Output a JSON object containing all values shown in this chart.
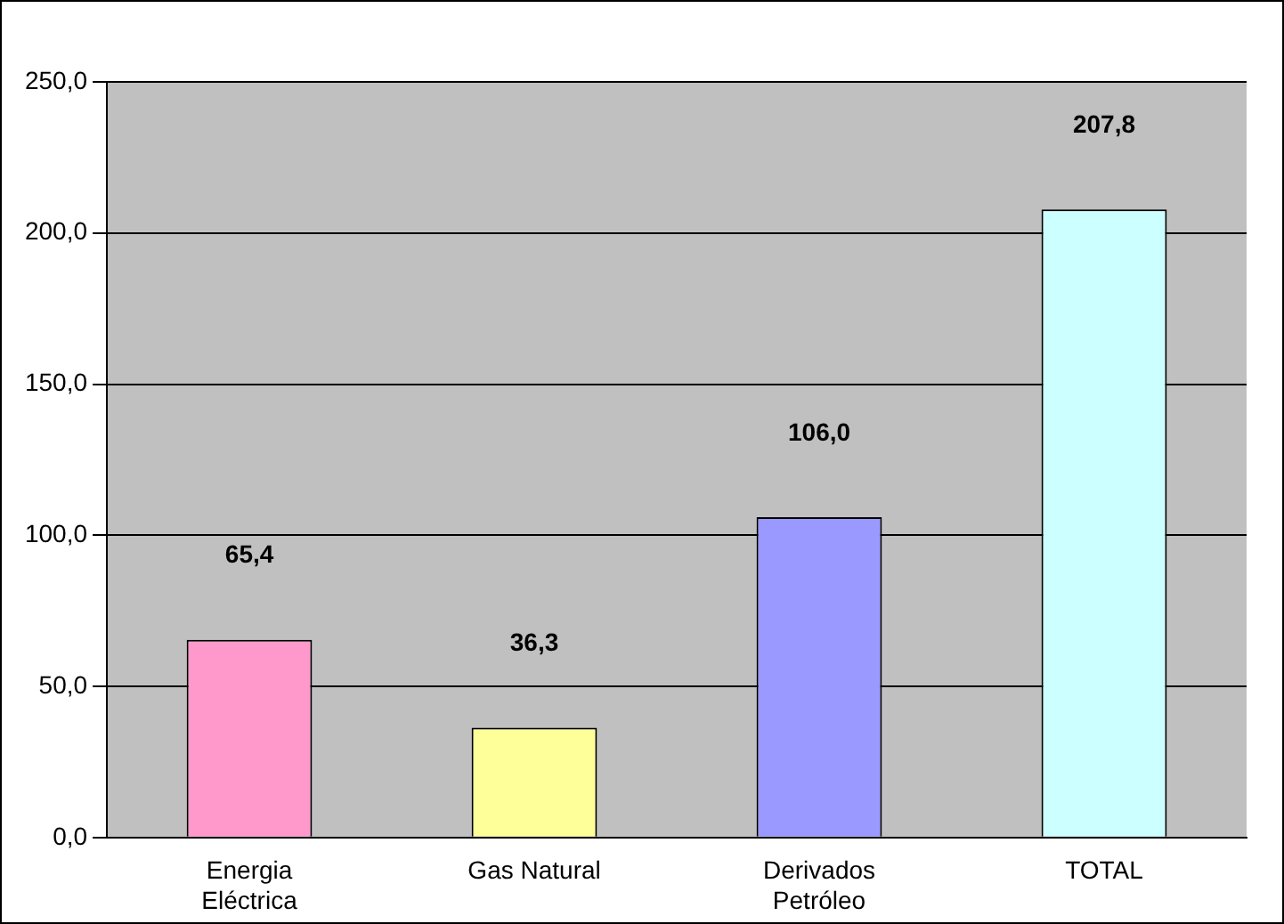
{
  "chart_data": {
    "type": "bar",
    "categories": [
      "Energia Eléctrica",
      "Gas Natural",
      "Derivados Petróleo",
      "TOTAL"
    ],
    "values": [
      65.4,
      36.3,
      106.0,
      207.8
    ],
    "colors": [
      "#ff99cc",
      "#ffff99",
      "#9999ff",
      "#ccffff"
    ],
    "value_labels": [
      "65,4",
      "36,3",
      "106,0",
      "207,8"
    ],
    "ylim": [
      0,
      250
    ],
    "yticks": [
      {
        "value": 0,
        "label": "0,0"
      },
      {
        "value": 50,
        "label": "50,0"
      },
      {
        "value": 100,
        "label": "100,0"
      },
      {
        "value": 150,
        "label": "150,0"
      },
      {
        "value": 200,
        "label": "200,0"
      },
      {
        "value": 250,
        "label": "250,0"
      }
    ],
    "grid": "y",
    "legend": false
  }
}
